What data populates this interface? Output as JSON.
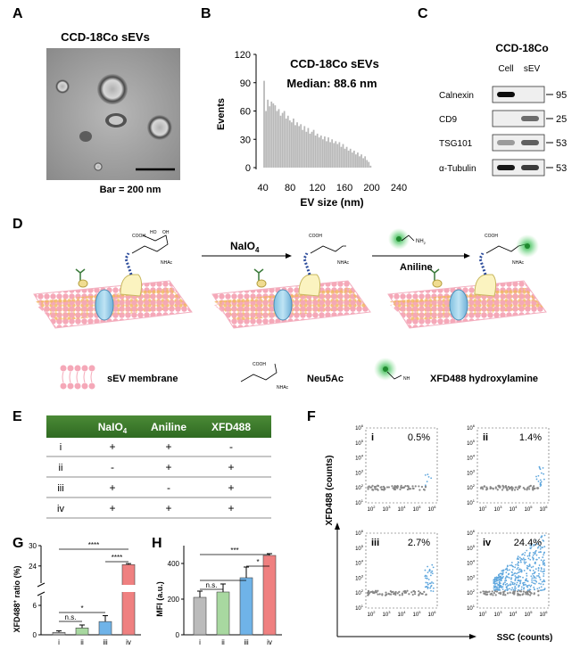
{
  "panels": {
    "A": "A",
    "B": "B",
    "C": "C",
    "D": "D",
    "E": "E",
    "F": "F",
    "G": "G",
    "H": "H"
  },
  "panel_a": {
    "title": "CCD-18Co sEVs",
    "scale": "Bar = 200 nm"
  },
  "panel_b": {
    "title": "CCD-18Co sEVs",
    "median": "Median: 88.6 nm"
  },
  "panel_c": {
    "title": "CCD-18Co",
    "columns": [
      "Cell",
      "sEV"
    ],
    "rows": [
      {
        "protein": "Calnexin",
        "kda": "95",
        "cell": 0.95,
        "sev": 0.0
      },
      {
        "protein": "CD9",
        "kda": "25",
        "cell": 0.0,
        "sev": 0.55
      },
      {
        "protein": "TSG101",
        "kda": "53",
        "cell": 0.35,
        "sev": 0.6
      },
      {
        "protein": "α-Tubulin",
        "kda": "53",
        "cell": 0.9,
        "sev": 0.75
      }
    ]
  },
  "panel_d": {
    "step1": "NaIO",
    "step1_sub": "4",
    "step2": "Aniline",
    "cooh": "COOH",
    "ho": "HO",
    "oh": "OH",
    "nhac": "NHAc",
    "nh2": "NH",
    "legend": {
      "membrane": "sEV membrane",
      "neu5ac": "Neu5Ac",
      "xfd": "XFD488 hydroxylamine"
    }
  },
  "panel_e": {
    "headers": [
      "NaIO",
      "Aniline",
      "XFD488"
    ],
    "header_sub": "4",
    "rows": [
      {
        "id": "i",
        "cells": [
          "+",
          "+",
          "-"
        ]
      },
      {
        "id": "ii",
        "cells": [
          "-",
          "+",
          "+"
        ]
      },
      {
        "id": "iii",
        "cells": [
          "+",
          "-",
          "+"
        ]
      },
      {
        "id": "iv",
        "cells": [
          "+",
          "+",
          "+"
        ]
      }
    ]
  },
  "panel_f": {
    "ylabel": "XFD488 (counts)",
    "xlabel": "SSC (counts)",
    "plots": [
      {
        "id": "i",
        "pct": "0.5%"
      },
      {
        "id": "ii",
        "pct": "1.4%"
      },
      {
        "id": "iii",
        "pct": "2.7%"
      },
      {
        "id": "iv",
        "pct": "24.4%"
      }
    ],
    "yticks": [
      "10",
      "10",
      "10",
      "10",
      "10",
      "10"
    ],
    "exps": [
      "1",
      "2",
      "3",
      "4",
      "5",
      "6"
    ],
    "xexps": [
      "2",
      "3",
      "4",
      "5",
      "6"
    ]
  },
  "panel_g": {
    "sig": [
      "****",
      "****",
      "n.s.",
      "*"
    ]
  },
  "panel_h": {
    "sig": [
      "***",
      "*",
      "n.s."
    ]
  },
  "chart_data": [
    {
      "type": "bar",
      "title": "",
      "xlabel": "EV size (nm)",
      "ylabel": "Events",
      "xlim": [
        30,
        240
      ],
      "ylim": [
        0,
        120
      ],
      "xticks": [
        "40",
        "80",
        "120",
        "160",
        "200",
        "240"
      ],
      "yticks": [
        "0",
        "30",
        "60",
        "90",
        "120"
      ],
      "values": [
        0,
        92,
        60,
        72,
        65,
        70,
        68,
        66,
        60,
        62,
        55,
        58,
        60,
        52,
        55,
        50,
        48,
        52,
        45,
        48,
        44,
        46,
        40,
        44,
        38,
        42,
        36,
        38,
        40,
        34,
        36,
        32,
        34,
        30,
        33,
        28,
        32,
        27,
        30,
        26,
        28,
        25,
        27,
        22,
        25,
        20,
        22,
        18,
        20,
        16,
        18,
        14,
        16,
        12,
        14,
        10,
        12,
        8,
        6,
        2
      ]
    },
    {
      "type": "bar",
      "title": "",
      "ylabel": "XFD488⁺ ratio (%)",
      "categories": [
        "i",
        "ii",
        "iii",
        "iv"
      ],
      "values": [
        0.5,
        1.4,
        2.7,
        24.4
      ],
      "errors": [
        0.3,
        0.6,
        1.2,
        0.3
      ],
      "yticks": [
        "0",
        "6",
        "24",
        "30"
      ],
      "ylim_break": [
        8,
        20
      ]
    },
    {
      "type": "bar",
      "title": "",
      "ylabel": "MFI (a.u.)",
      "categories": [
        "i",
        "ii",
        "iii",
        "iv"
      ],
      "values": [
        210,
        240,
        320,
        445
      ],
      "errors": [
        35,
        45,
        60,
        10
      ],
      "ylim": [
        0,
        500
      ],
      "yticks": [
        "0",
        "200",
        "400"
      ]
    }
  ],
  "colors": {
    "bar_i": "#bbbbbb",
    "bar_ii": "#a8d8a0",
    "bar_iii": "#6fb3e8",
    "bar_iv": "#ef8080",
    "header_green": "#3e7a2c",
    "glow": "#3ec35a"
  }
}
